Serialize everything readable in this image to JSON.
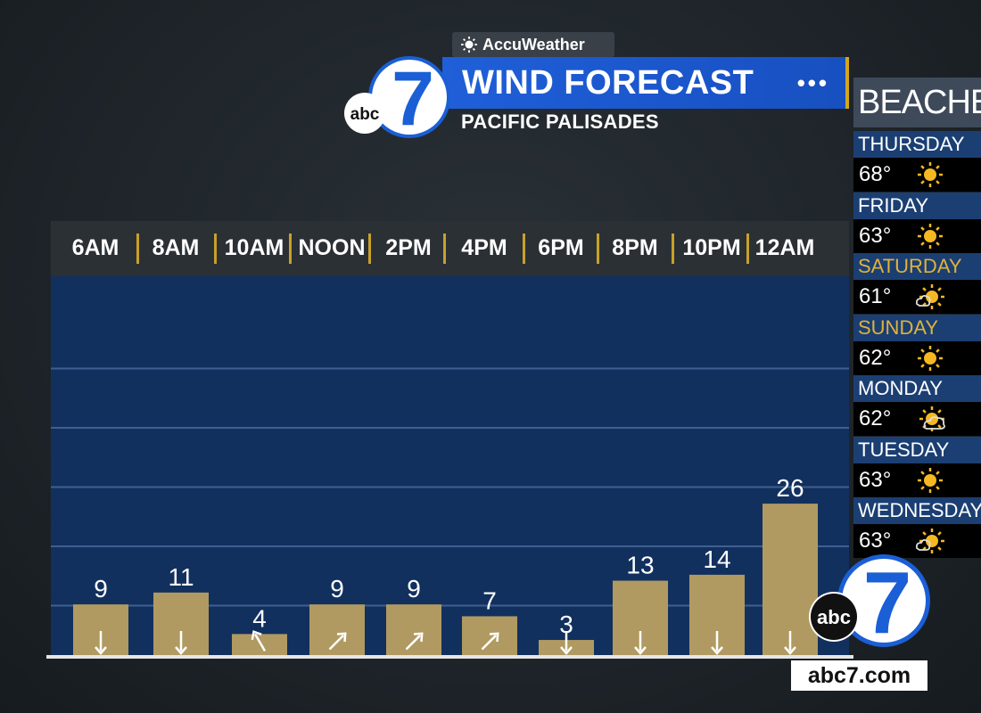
{
  "brand": {
    "provider": "AccuWeather",
    "station_logo_text": "abc",
    "station_logo_number": "7",
    "website": "abc7.com"
  },
  "header": {
    "title": "WIND FORECAST",
    "subtitle": "PACIFIC PALISADES",
    "menu_dots": "•••"
  },
  "chart_data": {
    "type": "bar",
    "categories": [
      "6AM",
      "8AM",
      "10AM",
      "NOON",
      "2PM",
      "4PM",
      "6PM",
      "8PM",
      "10PM",
      "12AM"
    ],
    "values": [
      9,
      11,
      4,
      9,
      9,
      7,
      3,
      13,
      14,
      26
    ],
    "value_labels": [
      "9",
      "11",
      "4",
      "9",
      "9",
      "7",
      "3",
      "13",
      "14",
      "26"
    ],
    "wind_direction_arrows": [
      "down",
      "down",
      "up-left",
      "up-right",
      "up-right",
      "up-right",
      "down",
      "down",
      "down",
      "down"
    ],
    "ylim": [
      0,
      60
    ],
    "grid": true,
    "colors": {
      "bar": "#b09a62",
      "background": "#12305e",
      "gridline": "#3f5f92",
      "separator": "#c8a12a"
    }
  },
  "sidebar": {
    "header": "BEACHES",
    "days": [
      {
        "day": "THURSDAY",
        "temp": "68°",
        "icon": "sun-icon",
        "highlight": false
      },
      {
        "day": "FRIDAY",
        "temp": "63°",
        "icon": "sun-icon",
        "highlight": false
      },
      {
        "day": "SATURDAY",
        "temp": "61°",
        "icon": "partly-sunny-icon",
        "highlight": true
      },
      {
        "day": "SUNDAY",
        "temp": "62°",
        "icon": "sun-icon",
        "highlight": true
      },
      {
        "day": "MONDAY",
        "temp": "62°",
        "icon": "mostly-cloudy-icon",
        "highlight": false
      },
      {
        "day": "TUESDAY",
        "temp": "63°",
        "icon": "sun-icon",
        "highlight": false
      },
      {
        "day": "WEDNESDAY",
        "temp": "63°",
        "icon": "partly-sunny-icon",
        "highlight": false
      }
    ]
  }
}
